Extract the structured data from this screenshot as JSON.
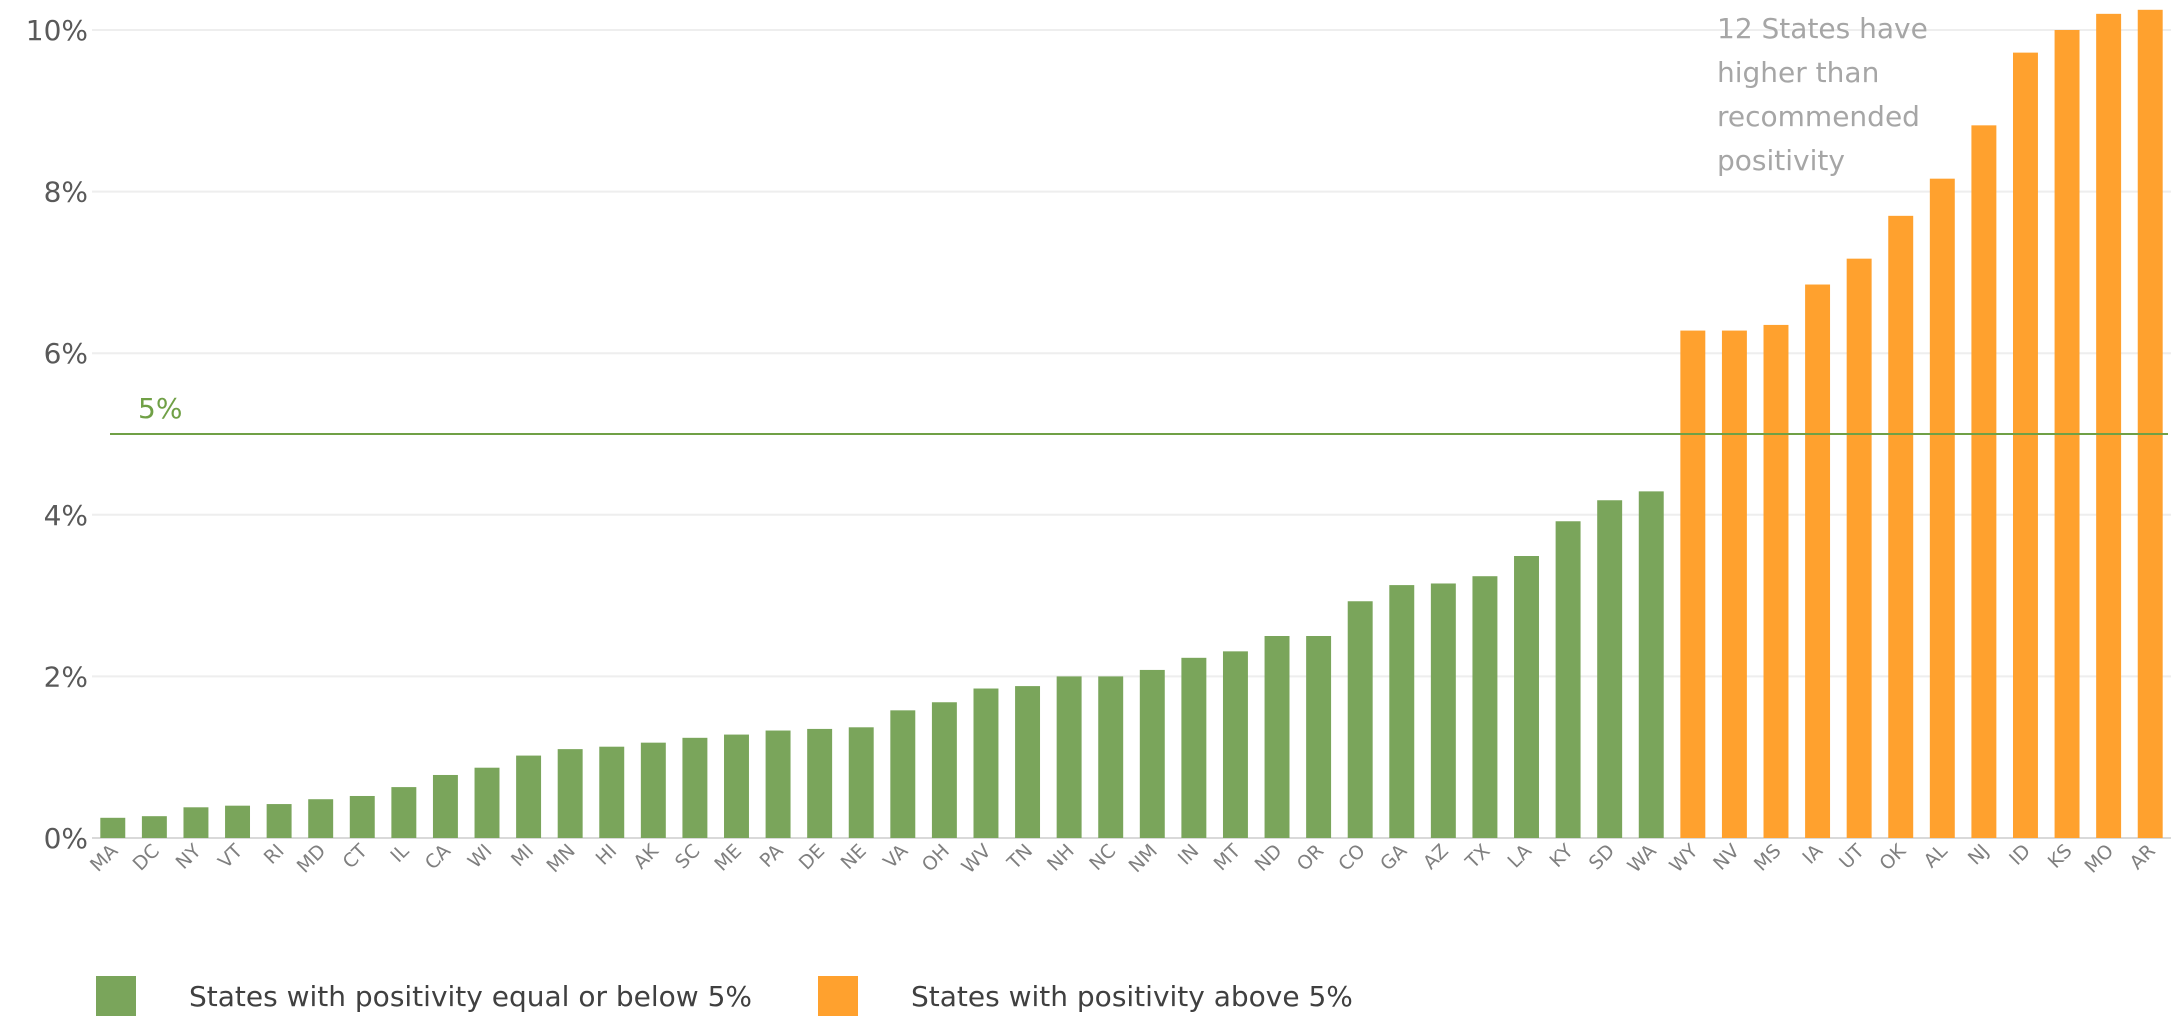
{
  "chart_data": {
    "type": "bar",
    "categories": [
      "MA",
      "DC",
      "NY",
      "VT",
      "RI",
      "MD",
      "CT",
      "IL",
      "CA",
      "WI",
      "MI",
      "MN",
      "HI",
      "AK",
      "SC",
      "ME",
      "PA",
      "DE",
      "NE",
      "VA",
      "OH",
      "WV",
      "TN",
      "NH",
      "NC",
      "NM",
      "IN",
      "MT",
      "ND",
      "OR",
      "CO",
      "GA",
      "AZ",
      "TX",
      "LA",
      "KY",
      "SD",
      "WA",
      "WY",
      "NV",
      "MS",
      "IA",
      "UT",
      "OK",
      "AL",
      "NJ",
      "ID",
      "KS",
      "MO",
      "AR"
    ],
    "values": [
      0.25,
      0.27,
      0.38,
      0.4,
      0.42,
      0.48,
      0.52,
      0.63,
      0.78,
      0.87,
      1.02,
      1.1,
      1.13,
      1.18,
      1.24,
      1.28,
      1.33,
      1.35,
      1.37,
      1.58,
      1.68,
      1.85,
      1.88,
      2.0,
      2.0,
      2.08,
      2.23,
      2.31,
      2.5,
      2.5,
      2.93,
      3.13,
      3.15,
      3.24,
      3.49,
      3.92,
      4.18,
      4.29,
      6.28,
      6.28,
      6.35,
      6.85,
      7.17,
      7.7,
      8.16,
      8.82,
      9.72,
      10.0,
      10.2,
      10.25
    ],
    "ylim": [
      0,
      10
    ],
    "yticks": [
      "0%",
      "2%",
      "4%",
      "6%",
      "8%",
      "10%"
    ],
    "threshold": {
      "value": 5,
      "label": "5%",
      "color": "#70a046"
    },
    "annotation": [
      "12 States have",
      "higher than",
      "recommended",
      "positivity"
    ],
    "series": [
      {
        "name": "States with positivity equal or below 5%",
        "color": "#7aa55b"
      },
      {
        "name": "States with positivity above 5%",
        "color": "#ffa12e"
      }
    ],
    "grid": true,
    "legend_position": "bottom-left"
  }
}
